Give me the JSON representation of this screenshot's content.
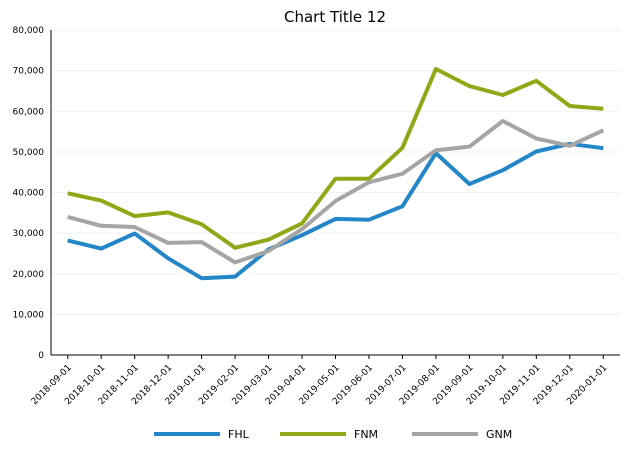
{
  "chart_data": {
    "type": "line",
    "title": "Chart Title 12",
    "xlabel": "",
    "ylabel": "",
    "ylim": [
      0,
      80000
    ],
    "yticks": [
      "0",
      "10,000",
      "20,000",
      "30,000",
      "40,000",
      "50,000",
      "60,000",
      "70,000",
      "80,000"
    ],
    "categories": [
      "2018-09-01",
      "2018-10-01",
      "2018-11-01",
      "2018-12-01",
      "2019-01-01",
      "2019-02-01",
      "2019-03-01",
      "2019-04-01",
      "2019-05-01",
      "2019-06-01",
      "2019-07-01",
      "2019-08-01",
      "2019-09-01",
      "2019-10-01",
      "2019-11-01",
      "2019-12-01",
      "2020-01-01"
    ],
    "grid": true,
    "legend_position": "bottom",
    "series": [
      {
        "name": "FHL",
        "color": "#2386c8",
        "values": [
          28200,
          26200,
          29900,
          23800,
          18900,
          19300,
          26000,
          29500,
          33500,
          33300,
          36600,
          49700,
          42100,
          45500,
          50100,
          52000,
          50900
        ]
      },
      {
        "name": "FNM",
        "color": "#8ea817",
        "values": [
          39800,
          38000,
          34200,
          35100,
          32200,
          26400,
          28400,
          32400,
          43400,
          43400,
          51000,
          70400,
          66200,
          64000,
          67500,
          61300,
          60600
        ]
      },
      {
        "name": "GNM",
        "color": "#a5a5a5",
        "values": [
          34000,
          31800,
          31500,
          27600,
          27800,
          22800,
          25600,
          31000,
          37900,
          42500,
          44600,
          50400,
          51300,
          57600,
          53300,
          51500,
          55300
        ]
      }
    ]
  }
}
